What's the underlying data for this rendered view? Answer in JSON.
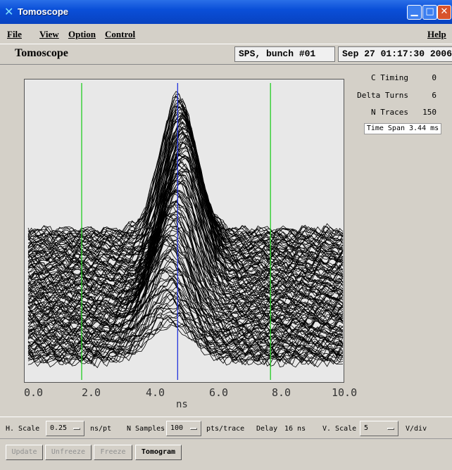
{
  "window": {
    "title": "Tomoscope",
    "app_icon": "x-icon",
    "controls": [
      "minimize",
      "maximize",
      "close"
    ]
  },
  "menu": {
    "file": "File",
    "view": "View",
    "option": "Option",
    "control": "Control",
    "help": "Help"
  },
  "header": {
    "app_title": "Tomoscope",
    "machine": "SPS, bunch #01",
    "datetime": "Sep 27 01:17:30 2006"
  },
  "side_panel": [
    {
      "label": "C Timing",
      "value": "0"
    },
    {
      "label": "Delta Turns",
      "value": "6"
    },
    {
      "label": "N Traces",
      "value": "150"
    }
  ],
  "time_span": "Time Span 3.44 ms",
  "controls": {
    "h_scale_label": "H. Scale",
    "h_scale_value": "0.25",
    "h_scale_unit": "ns/pt",
    "n_samples_label": "N Samples",
    "n_samples_value": "100",
    "n_samples_unit": "pts/trace",
    "delay_label": "Delay",
    "delay_value": "16 ns",
    "v_scale_label": "V. Scale",
    "v_scale_value": "5",
    "v_scale_unit": "V/div"
  },
  "buttons": {
    "update": "Update",
    "unfreeze": "Unfreeze",
    "freeze": "Freeze",
    "tomogram": "Tomogram"
  },
  "chart_data": {
    "type": "line",
    "description": "Mountain-range plot of 150 stacked longitudinal bunch profile traces",
    "xlabel": "ns",
    "xlim": [
      0.0,
      10.0
    ],
    "x_ticks": [
      "0.0",
      "2.0",
      "4.0",
      "6.0",
      "8.0",
      "10.0"
    ],
    "n_traces": 150,
    "markers": [
      {
        "x": 1.7,
        "color": "#22cc22"
      },
      {
        "x": 4.75,
        "color": "#2233dd"
      },
      {
        "x": 7.7,
        "color": "#22cc22"
      }
    ],
    "trace_color": "#000000",
    "background": "#e8e8e8"
  }
}
